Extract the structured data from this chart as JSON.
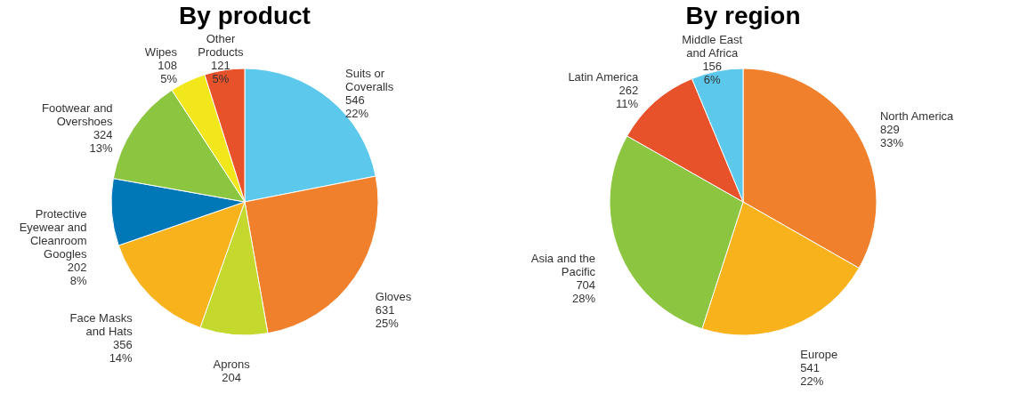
{
  "chart_data": [
    {
      "type": "pie",
      "title": "By product",
      "categories": [
        "Suits or Coveralls",
        "Gloves",
        "Aprons",
        "Face Masks and Hats",
        "Protective Eyewear and Cleanroom Googles",
        "Footwear and Overshoes",
        "Wipes",
        "Other Products"
      ],
      "values": [
        546,
        631,
        204,
        356,
        202,
        324,
        108,
        121
      ],
      "colors": [
        "#5bc8ec",
        "#f0802c",
        "#c5d82e",
        "#f7b21c",
        "#0077b6",
        "#8cc540",
        "#f2e71b",
        "#e8522b"
      ],
      "value_labels": [
        "546\n22%",
        "631\n25%",
        "204",
        "356\n14%",
        "202\n8%",
        "324\n13%",
        "108\n5%",
        "121\n5%"
      ],
      "legend": false
    },
    {
      "type": "pie",
      "title": "By region",
      "categories": [
        "North America",
        "Europe",
        "Asia and the Pacific",
        "Latin America",
        "Middle East and Africa"
      ],
      "values": [
        829,
        541,
        704,
        262,
        156
      ],
      "colors": [
        "#f0802c",
        "#f7b21c",
        "#8cc540",
        "#e8522b",
        "#5bc8ec"
      ],
      "value_labels": [
        "829\n33%",
        "541\n22%",
        "704\n28%",
        "262\n11%",
        "156\n6%"
      ],
      "legend": false
    }
  ]
}
